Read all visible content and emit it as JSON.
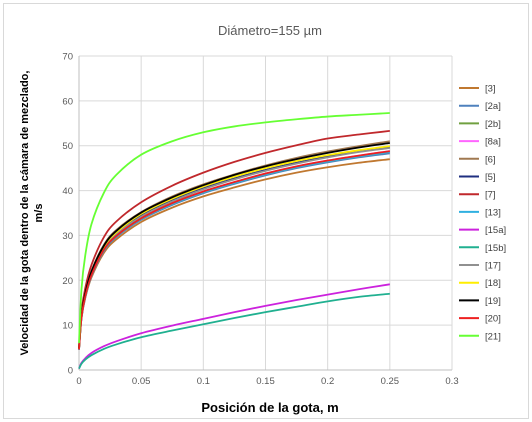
{
  "chart_data": {
    "type": "line",
    "title": "Diámetro=155 µm",
    "xlabel": "Posición de la gota, m",
    "ylabel_lines": [
      "Velocidad de la gota dentro de la cámara de mezclado,",
      "m/s"
    ],
    "xlim": [
      0,
      0.3
    ],
    "ylim": [
      0,
      70
    ],
    "xticks": [
      "0",
      "0.05",
      "0.1",
      "0.15",
      "0.2",
      "0.25",
      "0.3"
    ],
    "yticks": [
      "0",
      "10",
      "20",
      "30",
      "40",
      "50",
      "60",
      "70"
    ],
    "grid": true,
    "legend_position": "right",
    "x": [
      0,
      0.002,
      0.005,
      0.01,
      0.02,
      0.03,
      0.05,
      0.075,
      0.1,
      0.125,
      0.15,
      0.175,
      0.2,
      0.225,
      0.25
    ],
    "series": [
      {
        "name": "[3]",
        "color": "#c07830",
        "values": [
          4.5,
          11.5,
          16.0,
          20.6,
          26.1,
          29.1,
          33.0,
          36.2,
          38.7,
          40.7,
          42.5,
          44.0,
          45.2,
          46.2,
          47.0
        ]
      },
      {
        "name": "[2a]",
        "color": "#4f81bd",
        "values": [
          4.5,
          11.6,
          16.2,
          20.9,
          26.5,
          29.6,
          33.5,
          36.8,
          39.4,
          41.5,
          43.4,
          45.0,
          46.3,
          47.4,
          48.3
        ]
      },
      {
        "name": "[2b]",
        "color": "#70a040",
        "values": [
          4.6,
          11.7,
          16.3,
          21.0,
          26.7,
          29.8,
          33.7,
          37.0,
          39.6,
          41.7,
          43.6,
          45.2,
          46.5,
          47.6,
          48.6
        ]
      },
      {
        "name": "[8a]",
        "color": "#ff66ff",
        "values": [
          4.6,
          11.8,
          16.4,
          21.1,
          26.8,
          29.9,
          33.8,
          37.2,
          39.8,
          41.9,
          43.8,
          45.4,
          46.7,
          47.8,
          48.8
        ]
      },
      {
        "name": "[6]",
        "color": "#a07850",
        "values": [
          4.8,
          12.2,
          17.1,
          22.1,
          27.9,
          31.2,
          35.2,
          38.7,
          41.4,
          43.6,
          45.6,
          47.3,
          48.7,
          49.9,
          51.0
        ]
      },
      {
        "name": "[5]",
        "color": "#1f2f80",
        "values": [
          4.7,
          11.9,
          16.6,
          21.4,
          27.2,
          30.4,
          34.4,
          37.8,
          40.5,
          42.7,
          44.6,
          46.2,
          47.6,
          48.8,
          49.8
        ]
      },
      {
        "name": "[7]",
        "color": "#c0282c",
        "values": [
          5.1,
          13.0,
          18.2,
          23.4,
          29.6,
          33.1,
          37.4,
          41.1,
          44.0,
          46.4,
          48.4,
          50.1,
          51.6,
          52.5,
          53.3
        ]
      },
      {
        "name": "[13]",
        "color": "#30b0e0",
        "values": [
          4.6,
          11.7,
          16.3,
          21.0,
          26.7,
          29.8,
          33.7,
          37.0,
          39.6,
          41.7,
          43.6,
          45.2,
          46.5,
          47.6,
          48.6
        ]
      },
      {
        "name": "[15a]",
        "color": "#cc22dd",
        "values": [
          0.3,
          1.6,
          2.6,
          3.8,
          5.3,
          6.4,
          8.2,
          9.9,
          11.4,
          12.9,
          14.3,
          15.6,
          16.8,
          18.0,
          19.1
        ]
      },
      {
        "name": "[15b]",
        "color": "#20b090",
        "values": [
          0.3,
          1.4,
          2.3,
          3.3,
          4.7,
          5.7,
          7.3,
          8.8,
          10.2,
          11.6,
          12.9,
          14.1,
          15.3,
          16.3,
          17.0
        ]
      },
      {
        "name": "[17]",
        "color": "#909090",
        "values": [
          4.7,
          11.9,
          16.6,
          21.4,
          27.1,
          30.3,
          34.2,
          37.6,
          40.3,
          42.5,
          44.4,
          46.0,
          47.4,
          48.6,
          49.5
        ]
      },
      {
        "name": "[18]",
        "color": "#ffee00",
        "values": [
          4.7,
          12.1,
          16.8,
          21.7,
          27.5,
          30.7,
          34.8,
          38.2,
          40.9,
          43.1,
          45.0,
          46.6,
          47.9,
          49.0,
          49.9
        ]
      },
      {
        "name": "[19]",
        "color": "#000000",
        "values": [
          4.8,
          12.2,
          17.0,
          21.9,
          27.7,
          31.0,
          35.1,
          38.5,
          41.2,
          43.5,
          45.4,
          47.0,
          48.4,
          49.6,
          50.6
        ]
      },
      {
        "name": "[20]",
        "color": "#ee2020",
        "values": [
          4.6,
          11.7,
          16.4,
          21.1,
          26.8,
          29.9,
          33.8,
          37.2,
          39.8,
          41.9,
          43.8,
          45.4,
          46.7,
          47.8,
          48.8
        ]
      },
      {
        "name": "[21]",
        "color": "#66ff33",
        "values": [
          6.0,
          18.0,
          25.5,
          32.5,
          39.5,
          43.5,
          48.0,
          51.0,
          53.0,
          54.3,
          55.2,
          55.9,
          56.5,
          56.9,
          57.3
        ]
      }
    ]
  }
}
